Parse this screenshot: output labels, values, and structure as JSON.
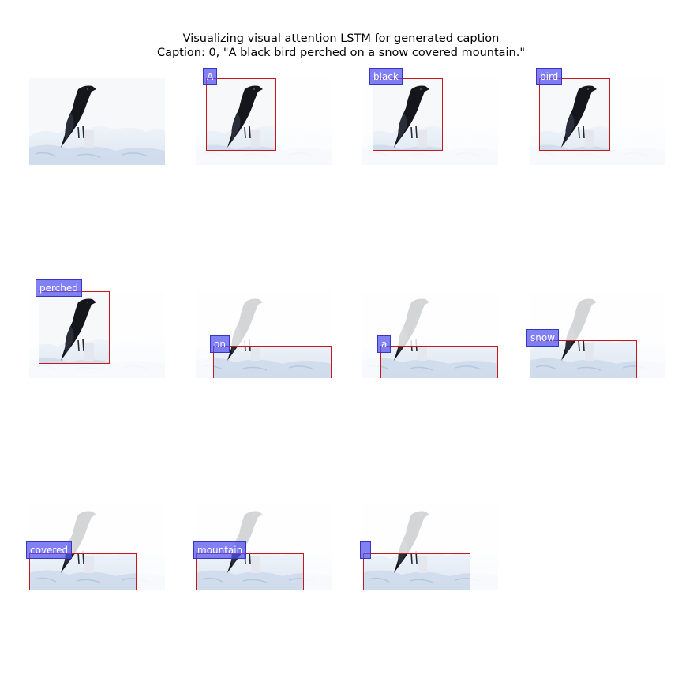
{
  "figure": {
    "title": "Visualizing visual attention LSTM for generated caption",
    "caption_line": "Caption: 0, \"A black bird perched on a snow covered mountain.\""
  },
  "panels": [
    {
      "word": "",
      "kind": "original"
    },
    {
      "word": "A",
      "kind": "attention"
    },
    {
      "word": "black",
      "kind": "attention"
    },
    {
      "word": "bird",
      "kind": "attention"
    },
    {
      "word": "perched",
      "kind": "attention"
    },
    {
      "word": "on",
      "kind": "attention"
    },
    {
      "word": "a",
      "kind": "attention"
    },
    {
      "word": "snow",
      "kind": "attention"
    },
    {
      "word": "covered",
      "kind": "attention"
    },
    {
      "word": "mountain",
      "kind": "attention"
    },
    {
      "word": ".",
      "kind": "attention"
    }
  ],
  "colors": {
    "box_edge": "#c8171c",
    "label_fill": "#5050f0",
    "sky": "#f7f8fa",
    "snow": "#dde6f1",
    "bird": "#15161c"
  }
}
